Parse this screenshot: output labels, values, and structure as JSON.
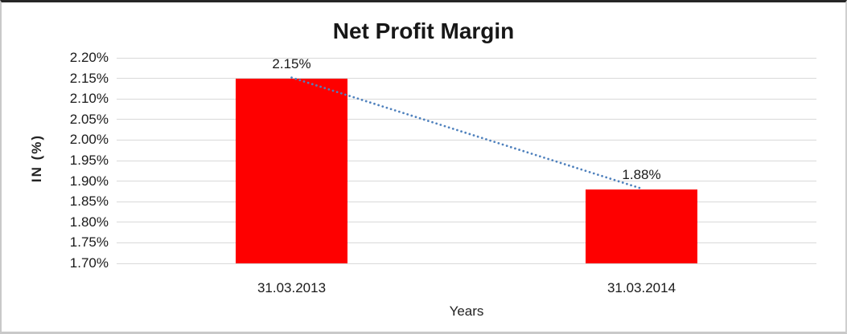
{
  "chart_data": {
    "type": "bar",
    "title": "Net Profit Margin",
    "xlabel": "Years",
    "ylabel": "IN (%)",
    "categories": [
      "31.03.2013",
      "31.03.2014"
    ],
    "values": [
      2.15,
      1.88
    ],
    "data_labels": [
      "2.15%",
      "1.88%"
    ],
    "ylim": [
      1.7,
      2.2
    ],
    "ytick_step": 0.05,
    "ytick_labels": [
      "2.20%",
      "2.15%",
      "2.10%",
      "2.05%",
      "2.00%",
      "1.95%",
      "1.90%",
      "1.85%",
      "1.80%",
      "1.75%",
      "1.70%"
    ],
    "grid": true,
    "legend": "none",
    "bar_color": "#fe0000",
    "gridline_color": "#d9d9d9",
    "trendline": {
      "type": "linear",
      "style": "dotted",
      "color": "#4f81bd",
      "from_value": 2.15,
      "to_value": 1.88
    }
  }
}
